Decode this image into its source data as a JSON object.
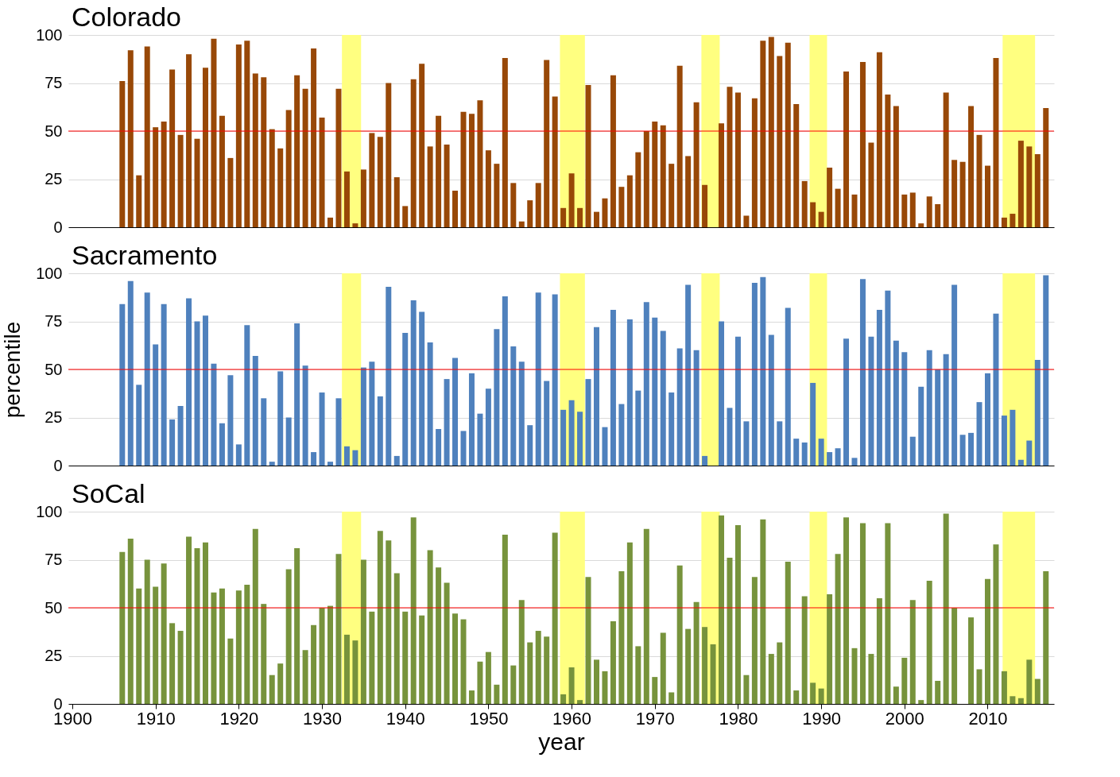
{
  "chart_data": [
    {
      "type": "bar",
      "title": "Colorado",
      "color": "#984807",
      "xlim": [
        1900,
        2017.5
      ],
      "ylim": [
        0,
        100
      ],
      "yticks": [
        0,
        25,
        50,
        75,
        100
      ],
      "grid": "y",
      "tick_labels": "y",
      "x": [
        1906,
        1907,
        1908,
        1909,
        1910,
        1911,
        1912,
        1913,
        1914,
        1915,
        1916,
        1917,
        1918,
        1919,
        1920,
        1921,
        1922,
        1923,
        1924,
        1925,
        1926,
        1927,
        1928,
        1929,
        1930,
        1931,
        1932,
        1933,
        1934,
        1935,
        1936,
        1937,
        1938,
        1939,
        1940,
        1941,
        1942,
        1943,
        1944,
        1945,
        1946,
        1947,
        1948,
        1949,
        1950,
        1951,
        1952,
        1953,
        1954,
        1955,
        1956,
        1957,
        1958,
        1959,
        1960,
        1961,
        1962,
        1963,
        1964,
        1965,
        1966,
        1967,
        1968,
        1969,
        1970,
        1971,
        1972,
        1973,
        1974,
        1975,
        1976,
        1977,
        1978,
        1979,
        1980,
        1981,
        1982,
        1983,
        1984,
        1985,
        1986,
        1987,
        1988,
        1989,
        1990,
        1991,
        1992,
        1993,
        1994,
        1995,
        1996,
        1997,
        1998,
        1999,
        2000,
        2001,
        2002,
        2003,
        2004,
        2005,
        2006,
        2007,
        2008,
        2009,
        2010,
        2011,
        2012,
        2013,
        2014,
        2015,
        2016,
        2017
      ],
      "values": [
        76,
        92,
        27,
        94,
        52,
        55,
        82,
        48,
        90,
        46,
        83,
        98,
        58,
        36,
        95,
        97,
        80,
        78,
        51,
        41,
        61,
        79,
        72,
        93,
        57,
        5,
        72,
        29,
        2,
        30,
        49,
        47,
        75,
        26,
        11,
        77,
        85,
        42,
        58,
        43,
        19,
        60,
        59,
        66,
        40,
        33,
        88,
        23,
        3,
        14,
        23,
        87,
        68,
        10,
        28,
        10,
        74,
        8,
        15,
        79,
        21,
        27,
        39,
        50,
        55,
        53,
        33,
        84,
        37,
        65,
        22,
        0,
        54,
        73,
        70,
        6,
        67,
        97,
        99,
        89,
        96,
        64,
        24,
        13,
        8,
        31,
        20,
        81,
        17,
        86,
        44,
        91,
        69,
        63,
        17,
        18,
        2,
        16,
        12,
        70,
        35,
        34,
        63,
        48,
        32,
        88,
        5,
        7,
        45,
        42,
        38,
        62
      ],
      "ref_lines": [
        {
          "axis": "y",
          "value": 50,
          "color": "#ff0000"
        }
      ],
      "bands": [
        {
          "axis": "x",
          "from": 1932.4,
          "to": 1934.7,
          "color": "#ffff80"
        },
        {
          "axis": "x",
          "from": 1958.6,
          "to": 1961.6,
          "color": "#ffff80"
        },
        {
          "axis": "x",
          "from": 1975.6,
          "to": 1977.8,
          "color": "#ffff80"
        },
        {
          "axis": "x",
          "from": 1988.6,
          "to": 1990.7,
          "color": "#ffff80"
        },
        {
          "axis": "x",
          "from": 2011.8,
          "to": 2015.7,
          "color": "#ffff80"
        }
      ]
    },
    {
      "type": "bar",
      "title": "Sacramento",
      "ylabel": "percentile",
      "color": "#4f81bd",
      "xlim": [
        1900,
        2017.5
      ],
      "ylim": [
        0,
        100
      ],
      "yticks": [
        0,
        25,
        50,
        75,
        100
      ],
      "grid": "y",
      "tick_labels": "y",
      "x": [
        1906,
        1907,
        1908,
        1909,
        1910,
        1911,
        1912,
        1913,
        1914,
        1915,
        1916,
        1917,
        1918,
        1919,
        1920,
        1921,
        1922,
        1923,
        1924,
        1925,
        1926,
        1927,
        1928,
        1929,
        1930,
        1931,
        1932,
        1933,
        1934,
        1935,
        1936,
        1937,
        1938,
        1939,
        1940,
        1941,
        1942,
        1943,
        1944,
        1945,
        1946,
        1947,
        1948,
        1949,
        1950,
        1951,
        1952,
        1953,
        1954,
        1955,
        1956,
        1957,
        1958,
        1959,
        1960,
        1961,
        1962,
        1963,
        1964,
        1965,
        1966,
        1967,
        1968,
        1969,
        1970,
        1971,
        1972,
        1973,
        1974,
        1975,
        1976,
        1977,
        1978,
        1979,
        1980,
        1981,
        1982,
        1983,
        1984,
        1985,
        1986,
        1987,
        1988,
        1989,
        1990,
        1991,
        1992,
        1993,
        1994,
        1995,
        1996,
        1997,
        1998,
        1999,
        2000,
        2001,
        2002,
        2003,
        2004,
        2005,
        2006,
        2007,
        2008,
        2009,
        2010,
        2011,
        2012,
        2013,
        2014,
        2015,
        2016,
        2017
      ],
      "values": [
        84,
        96,
        42,
        90,
        63,
        84,
        24,
        31,
        87,
        75,
        78,
        53,
        22,
        47,
        11,
        73,
        57,
        35,
        2,
        49,
        25,
        74,
        52,
        7,
        38,
        2,
        35,
        10,
        8,
        51,
        54,
        36,
        93,
        5,
        69,
        86,
        80,
        64,
        19,
        45,
        56,
        18,
        48,
        27,
        40,
        71,
        88,
        62,
        54,
        21,
        90,
        44,
        89,
        29,
        34,
        28,
        45,
        72,
        20,
        81,
        32,
        76,
        39,
        85,
        77,
        70,
        38,
        61,
        94,
        60,
        5,
        0,
        75,
        30,
        67,
        23,
        95,
        98,
        68,
        23,
        82,
        14,
        12,
        43,
        14,
        7,
        9,
        66,
        4,
        97,
        67,
        81,
        91,
        65,
        59,
        15,
        41,
        60,
        50,
        58,
        94,
        16,
        17,
        33,
        48,
        79,
        26,
        29,
        3,
        13,
        55,
        99
      ],
      "ref_lines": [
        {
          "axis": "y",
          "value": 50,
          "color": "#ff0000"
        }
      ],
      "bands": [
        {
          "axis": "x",
          "from": 1932.4,
          "to": 1934.7,
          "color": "#ffff80"
        },
        {
          "axis": "x",
          "from": 1958.6,
          "to": 1961.6,
          "color": "#ffff80"
        },
        {
          "axis": "x",
          "from": 1975.6,
          "to": 1977.8,
          "color": "#ffff80"
        },
        {
          "axis": "x",
          "from": 1988.6,
          "to": 1990.7,
          "color": "#ffff80"
        },
        {
          "axis": "x",
          "from": 2011.8,
          "to": 2015.7,
          "color": "#ffff80"
        }
      ]
    },
    {
      "type": "bar",
      "title": "SoCal",
      "xlabel": "year",
      "color": "#77933c",
      "xlim": [
        1900,
        2017.5
      ],
      "xticks": [
        1900,
        1910,
        1920,
        1930,
        1940,
        1950,
        1960,
        1970,
        1980,
        1990,
        2000,
        2010
      ],
      "ylim": [
        0,
        100
      ],
      "yticks": [
        0,
        25,
        50,
        75,
        100
      ],
      "grid": "y",
      "x": [
        1906,
        1907,
        1908,
        1909,
        1910,
        1911,
        1912,
        1913,
        1914,
        1915,
        1916,
        1917,
        1918,
        1919,
        1920,
        1921,
        1922,
        1923,
        1924,
        1925,
        1926,
        1927,
        1928,
        1929,
        1930,
        1931,
        1932,
        1933,
        1934,
        1935,
        1936,
        1937,
        1938,
        1939,
        1940,
        1941,
        1942,
        1943,
        1944,
        1945,
        1946,
        1947,
        1948,
        1949,
        1950,
        1951,
        1952,
        1953,
        1954,
        1955,
        1956,
        1957,
        1958,
        1959,
        1960,
        1961,
        1962,
        1963,
        1964,
        1965,
        1966,
        1967,
        1968,
        1969,
        1970,
        1971,
        1972,
        1973,
        1974,
        1975,
        1976,
        1977,
        1978,
        1979,
        1980,
        1981,
        1982,
        1983,
        1984,
        1985,
        1986,
        1987,
        1988,
        1989,
        1990,
        1991,
        1992,
        1993,
        1994,
        1995,
        1996,
        1997,
        1998,
        1999,
        2000,
        2001,
        2002,
        2003,
        2004,
        2005,
        2006,
        2007,
        2008,
        2009,
        2010,
        2011,
        2012,
        2013,
        2014,
        2015,
        2016,
        2017
      ],
      "values": [
        79,
        86,
        60,
        75,
        61,
        73,
        42,
        38,
        87,
        81,
        84,
        58,
        60,
        34,
        59,
        62,
        91,
        52,
        15,
        21,
        70,
        81,
        28,
        41,
        50,
        51,
        78,
        36,
        33,
        75,
        48,
        90,
        85,
        68,
        48,
        97,
        46,
        80,
        71,
        63,
        47,
        44,
        7,
        22,
        27,
        10,
        88,
        20,
        54,
        32,
        38,
        35,
        89,
        5,
        19,
        2,
        66,
        23,
        17,
        43,
        69,
        84,
        30,
        91,
        14,
        37,
        6,
        72,
        39,
        53,
        40,
        31,
        98,
        76,
        93,
        15,
        66,
        96,
        26,
        32,
        74,
        7,
        56,
        11,
        8,
        57,
        78,
        97,
        29,
        94,
        26,
        55,
        94,
        9,
        24,
        54,
        2,
        64,
        12,
        99,
        50,
        0,
        45,
        18,
        65,
        83,
        17,
        4,
        3,
        23,
        13,
        69
      ],
      "ref_lines": [
        {
          "axis": "y",
          "value": 50,
          "color": "#ff0000"
        }
      ],
      "bands": [
        {
          "axis": "x",
          "from": 1932.4,
          "to": 1934.7,
          "color": "#ffff80"
        },
        {
          "axis": "x",
          "from": 1958.6,
          "to": 1961.6,
          "color": "#ffff80"
        },
        {
          "axis": "x",
          "from": 1975.6,
          "to": 1977.8,
          "color": "#ffff80"
        },
        {
          "axis": "x",
          "from": 1988.6,
          "to": 1990.7,
          "color": "#ffff80"
        },
        {
          "axis": "x",
          "from": 2011.8,
          "to": 2015.7,
          "color": "#ffff80"
        }
      ]
    }
  ]
}
